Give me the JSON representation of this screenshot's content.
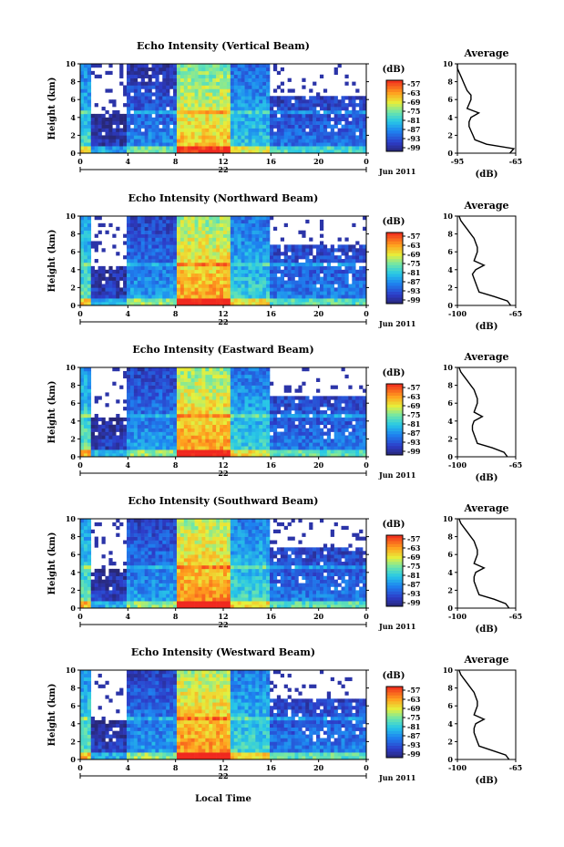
{
  "figure": {
    "xlabel_bottom": "Local Time",
    "date_label": "Jun 2011",
    "day_label": "22"
  },
  "chart_data": [
    {
      "type": "heatmap",
      "title": "Echo Intensity (Vertical Beam)",
      "xlabel": "",
      "ylabel": "Height (km)",
      "xlim": [
        0,
        24
      ],
      "ylim": [
        0,
        10
      ],
      "xticks": [
        "0",
        "4",
        "8",
        "12",
        "16",
        "20",
        "0"
      ],
      "yticks": [
        "0",
        "2",
        "4",
        "6",
        "8",
        "10"
      ],
      "colorbar": {
        "label": "(dB)",
        "ticks": [
          "-57",
          "-63",
          "-69",
          "-75",
          "-81",
          "-87",
          "-93",
          "-99"
        ]
      },
      "regimes": [
        {
          "start": 0,
          "end": 0.8,
          "top_km": 10,
          "value_db": -78
        },
        {
          "start": 0.8,
          "end": 4,
          "top_km": 4.3,
          "value_db": -94
        },
        {
          "start": 4,
          "end": 8,
          "top_km": 10,
          "value_db": -86
        },
        {
          "start": 8,
          "end": 12.5,
          "top_km": 10,
          "value_db": -66
        },
        {
          "start": 12.5,
          "end": 16,
          "top_km": 10,
          "value_db": -80
        },
        {
          "start": 16,
          "end": 24,
          "top_km": 6.5,
          "value_db": -88
        }
      ],
      "melting_layer_km": 4.6,
      "profile": {
        "title": "Average",
        "xlabel": "(dB)",
        "xticks": [
          "-95",
          "-65"
        ],
        "xlim": [
          -95,
          -65
        ],
        "height_km": [
          0,
          0.5,
          1,
          1.5,
          2,
          2.5,
          3,
          3.5,
          4,
          4.5,
          5,
          5.5,
          6,
          6.5,
          7,
          7.5,
          8,
          8.5,
          9,
          9.5,
          10
        ],
        "db": [
          -68,
          -66,
          -80,
          -86,
          -87,
          -88,
          -89,
          -89,
          -88,
          -84,
          -90,
          -89,
          -88,
          -88,
          -90,
          -91,
          -92,
          -93,
          -94,
          -95,
          -95
        ]
      }
    },
    {
      "type": "heatmap",
      "title": "Echo Intensity (Northward Beam)",
      "xlabel": "",
      "ylabel": "Height (km)",
      "xlim": [
        0,
        24
      ],
      "ylim": [
        0,
        10
      ],
      "xticks": [
        "0",
        "4",
        "8",
        "12",
        "16",
        "20",
        "0"
      ],
      "yticks": [
        "0",
        "2",
        "4",
        "6",
        "8",
        "10"
      ],
      "colorbar": {
        "label": "(dB)",
        "ticks": [
          "-57",
          "-63",
          "-69",
          "-75",
          "-81",
          "-87",
          "-93",
          "-99"
        ]
      },
      "regimes": [
        {
          "start": 0,
          "end": 0.8,
          "top_km": 10,
          "value_db": -76
        },
        {
          "start": 0.8,
          "end": 4,
          "top_km": 4.5,
          "value_db": -93
        },
        {
          "start": 4,
          "end": 8,
          "top_km": 10,
          "value_db": -84
        },
        {
          "start": 8,
          "end": 12.5,
          "top_km": 10,
          "value_db": -64
        },
        {
          "start": 12.5,
          "end": 16,
          "top_km": 10,
          "value_db": -79
        },
        {
          "start": 16,
          "end": 24,
          "top_km": 6.8,
          "value_db": -87
        }
      ],
      "melting_layer_km": 4.6,
      "profile": {
        "title": "Average",
        "xlabel": "(dB)",
        "xticks": [
          "-100",
          "-65"
        ],
        "xlim": [
          -100,
          -65
        ],
        "height_km": [
          0,
          0.5,
          1,
          1.5,
          2,
          2.5,
          3,
          3.5,
          4,
          4.5,
          5,
          5.5,
          6,
          6.5,
          7,
          7.5,
          8,
          8.5,
          9,
          9.5,
          10
        ],
        "db": [
          -68,
          -70,
          -78,
          -87,
          -88,
          -89,
          -90,
          -91,
          -89,
          -84,
          -90,
          -89,
          -88,
          -88,
          -89,
          -90,
          -92,
          -94,
          -96,
          -98,
          -99
        ]
      }
    },
    {
      "type": "heatmap",
      "title": "Echo Intensity (Eastward Beam)",
      "xlabel": "",
      "ylabel": "Height (km)",
      "xlim": [
        0,
        24
      ],
      "ylim": [
        0,
        10
      ],
      "xticks": [
        "0",
        "4",
        "8",
        "12",
        "16",
        "20",
        "0"
      ],
      "yticks": [
        "0",
        "2",
        "4",
        "6",
        "8",
        "10"
      ],
      "colorbar": {
        "label": "(dB)",
        "ticks": [
          "-57",
          "-63",
          "-69",
          "-75",
          "-81",
          "-87",
          "-93",
          "-99"
        ]
      },
      "regimes": [
        {
          "start": 0,
          "end": 0.8,
          "top_km": 10,
          "value_db": -76
        },
        {
          "start": 0.8,
          "end": 4,
          "top_km": 4.3,
          "value_db": -93
        },
        {
          "start": 4,
          "end": 8,
          "top_km": 10,
          "value_db": -84
        },
        {
          "start": 8,
          "end": 12.5,
          "top_km": 10,
          "value_db": -64
        },
        {
          "start": 12.5,
          "end": 16,
          "top_km": 10,
          "value_db": -79
        },
        {
          "start": 16,
          "end": 24,
          "top_km": 6.8,
          "value_db": -87
        }
      ],
      "melting_layer_km": 4.6,
      "profile": {
        "title": "Average",
        "xlabel": "(dB)",
        "xticks": [
          "-100",
          "-65"
        ],
        "xlim": [
          -100,
          -65
        ],
        "height_km": [
          0,
          0.5,
          1,
          1.5,
          2,
          2.5,
          3,
          3.5,
          4,
          4.5,
          5,
          5.5,
          6,
          6.5,
          7,
          7.5,
          8,
          8.5,
          9,
          9.5,
          10
        ],
        "db": [
          -70,
          -72,
          -79,
          -88,
          -89,
          -90,
          -91,
          -91,
          -90,
          -85,
          -90,
          -89,
          -88,
          -88,
          -89,
          -90,
          -92,
          -94,
          -96,
          -98,
          -99
        ]
      }
    },
    {
      "type": "heatmap",
      "title": "Echo Intensity (Southward Beam)",
      "xlabel": "",
      "ylabel": "Height (km)",
      "xlim": [
        0,
        24
      ],
      "ylim": [
        0,
        10
      ],
      "xticks": [
        "0",
        "4",
        "8",
        "12",
        "16",
        "20",
        "0"
      ],
      "yticks": [
        "0",
        "2",
        "4",
        "6",
        "8",
        "10"
      ],
      "colorbar": {
        "label": "(dB)",
        "ticks": [
          "-57",
          "-63",
          "-69",
          "-75",
          "-81",
          "-87",
          "-93",
          "-99"
        ]
      },
      "regimes": [
        {
          "start": 0,
          "end": 0.8,
          "top_km": 10,
          "value_db": -76
        },
        {
          "start": 0.8,
          "end": 4,
          "top_km": 4.5,
          "value_db": -93
        },
        {
          "start": 4,
          "end": 8,
          "top_km": 10,
          "value_db": -84
        },
        {
          "start": 8,
          "end": 12.5,
          "top_km": 10,
          "value_db": -63
        },
        {
          "start": 12.5,
          "end": 16,
          "top_km": 10,
          "value_db": -78
        },
        {
          "start": 16,
          "end": 24,
          "top_km": 6.8,
          "value_db": -87
        }
      ],
      "melting_layer_km": 4.6,
      "profile": {
        "title": "Average",
        "xlabel": "(dB)",
        "xticks": [
          "-100",
          "-65"
        ],
        "xlim": [
          -100,
          -65
        ],
        "height_km": [
          0,
          0.5,
          1,
          1.5,
          2,
          2.5,
          3,
          3.5,
          4,
          4.5,
          5,
          5.5,
          6,
          6.5,
          7,
          7.5,
          8,
          8.5,
          9,
          9.5,
          10
        ],
        "db": [
          -69,
          -71,
          -78,
          -87,
          -88,
          -89,
          -90,
          -90,
          -89,
          -84,
          -90,
          -89,
          -88,
          -88,
          -89,
          -90,
          -92,
          -94,
          -96,
          -98,
          -99
        ]
      }
    },
    {
      "type": "heatmap",
      "title": "Echo Intensity (Westward Beam)",
      "xlabel": "Local Time",
      "ylabel": "Height (km)",
      "xlim": [
        0,
        24
      ],
      "ylim": [
        0,
        10
      ],
      "xticks": [
        "0",
        "4",
        "8",
        "12",
        "16",
        "20",
        "0"
      ],
      "yticks": [
        "0",
        "2",
        "4",
        "6",
        "8",
        "10"
      ],
      "colorbar": {
        "label": "(dB)",
        "ticks": [
          "-57",
          "-63",
          "-69",
          "-75",
          "-81",
          "-87",
          "-93",
          "-99"
        ]
      },
      "regimes": [
        {
          "start": 0,
          "end": 0.8,
          "top_km": 10,
          "value_db": -76
        },
        {
          "start": 0.8,
          "end": 4,
          "top_km": 4.5,
          "value_db": -93
        },
        {
          "start": 4,
          "end": 8,
          "top_km": 10,
          "value_db": -84
        },
        {
          "start": 8,
          "end": 12.5,
          "top_km": 10,
          "value_db": -63
        },
        {
          "start": 12.5,
          "end": 16,
          "top_km": 10,
          "value_db": -78
        },
        {
          "start": 16,
          "end": 24,
          "top_km": 6.8,
          "value_db": -87
        }
      ],
      "melting_layer_km": 4.6,
      "profile": {
        "title": "Average",
        "xlabel": "(dB)",
        "xticks": [
          "-100",
          "-65"
        ],
        "xlim": [
          -100,
          -65
        ],
        "height_km": [
          0,
          0.5,
          1,
          1.5,
          2,
          2.5,
          3,
          3.5,
          4,
          4.5,
          5,
          5.5,
          6,
          6.5,
          7,
          7.5,
          8,
          8.5,
          9,
          9.5,
          10
        ],
        "db": [
          -69,
          -71,
          -79,
          -87,
          -88,
          -89,
          -90,
          -90,
          -89,
          -84,
          -90,
          -89,
          -88,
          -88,
          -89,
          -90,
          -92,
          -94,
          -96,
          -98,
          -99
        ]
      }
    }
  ]
}
